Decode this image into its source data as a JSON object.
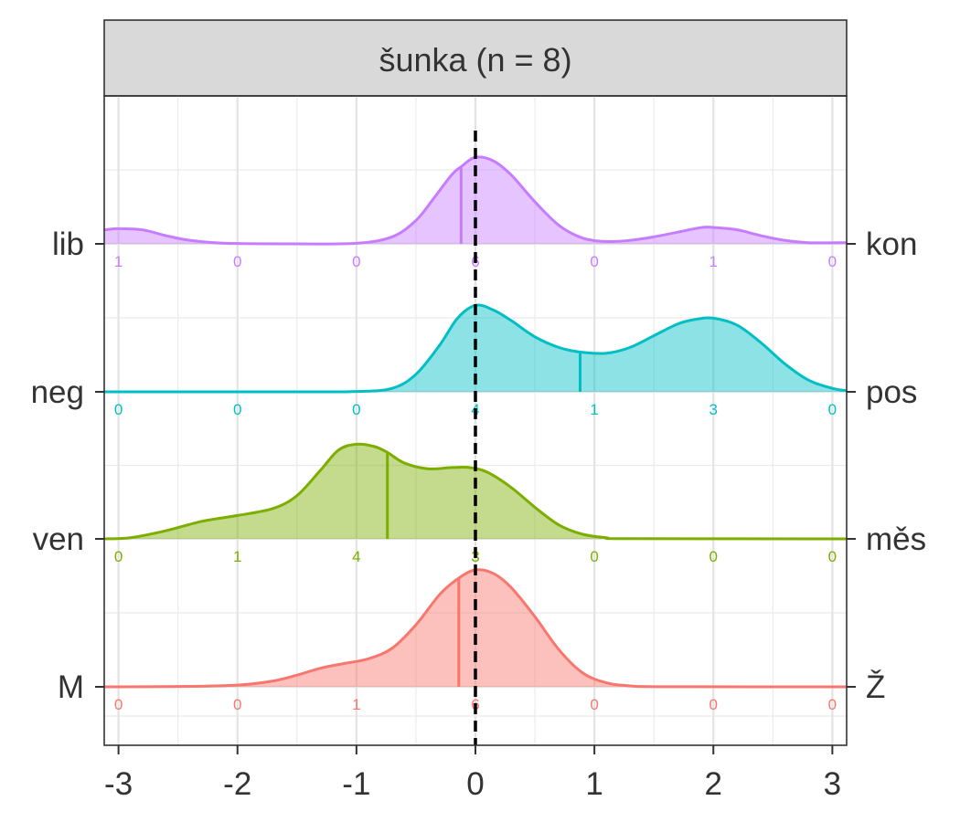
{
  "chart_data": {
    "type": "area",
    "title": "šunka (n = 8)",
    "xlabel": "",
    "ylabel": "",
    "xlim": [
      -3.12,
      3.12
    ],
    "x_ticks": [
      "-3",
      "-2",
      "-1",
      "0",
      "1",
      "2",
      "3"
    ],
    "count_positions": [
      -3,
      -2,
      -1,
      0,
      1,
      2,
      3
    ],
    "reference_line_x": 0,
    "grid": true,
    "legend": "none",
    "series": [
      {
        "left_label": "M",
        "right_label": "Ž",
        "color": "#F8766D",
        "mean": -0.14,
        "counts": [
          "0",
          "0",
          "1",
          "6",
          "0",
          "0",
          "0"
        ],
        "density": [
          [
            -3.12,
            0
          ],
          [
            -2.5,
            0.003
          ],
          [
            -2.0,
            0.015
          ],
          [
            -1.7,
            0.05
          ],
          [
            -1.5,
            0.1
          ],
          [
            -1.3,
            0.16
          ],
          [
            -1.1,
            0.2
          ],
          [
            -0.9,
            0.24
          ],
          [
            -0.7,
            0.33
          ],
          [
            -0.5,
            0.53
          ],
          [
            -0.3,
            0.79
          ],
          [
            -0.14,
            0.93
          ],
          [
            0,
            1.0
          ],
          [
            0.15,
            0.97
          ],
          [
            0.3,
            0.85
          ],
          [
            0.5,
            0.6
          ],
          [
            0.7,
            0.32
          ],
          [
            0.9,
            0.12
          ],
          [
            1.1,
            0.035
          ],
          [
            1.3,
            0.008
          ],
          [
            1.6,
            0.001
          ],
          [
            3.12,
            0
          ]
        ]
      },
      {
        "left_label": "ven",
        "right_label": "měs",
        "color": "#7CAE00",
        "mean": -0.74,
        "counts": [
          "0",
          "1",
          "4",
          "3",
          "0",
          "0",
          "0"
        ],
        "density": [
          [
            -3.12,
            0
          ],
          [
            -2.9,
            0.01
          ],
          [
            -2.6,
            0.07
          ],
          [
            -2.3,
            0.15
          ],
          [
            -2.0,
            0.2
          ],
          [
            -1.7,
            0.26
          ],
          [
            -1.5,
            0.37
          ],
          [
            -1.3,
            0.59
          ],
          [
            -1.15,
            0.76
          ],
          [
            -1.0,
            0.81
          ],
          [
            -0.85,
            0.79
          ],
          [
            -0.74,
            0.74
          ],
          [
            -0.6,
            0.65
          ],
          [
            -0.4,
            0.6
          ],
          [
            -0.2,
            0.61
          ],
          [
            -0.05,
            0.61
          ],
          [
            0.1,
            0.57
          ],
          [
            0.3,
            0.44
          ],
          [
            0.5,
            0.27
          ],
          [
            0.7,
            0.12
          ],
          [
            0.9,
            0.04
          ],
          [
            1.1,
            0.01
          ],
          [
            1.3,
            0.002
          ],
          [
            3.12,
            0
          ]
        ]
      },
      {
        "left_label": "neg",
        "right_label": "pos",
        "color": "#00BFC4",
        "mean": 0.88,
        "counts": [
          "0",
          "0",
          "0",
          "4",
          "1",
          "3",
          "0"
        ],
        "density": [
          [
            -3.12,
            0
          ],
          [
            -1.5,
            0
          ],
          [
            -1.0,
            0.003
          ],
          [
            -0.7,
            0.03
          ],
          [
            -0.5,
            0.15
          ],
          [
            -0.3,
            0.4
          ],
          [
            -0.15,
            0.63
          ],
          [
            0,
            0.74
          ],
          [
            0.15,
            0.7
          ],
          [
            0.3,
            0.61
          ],
          [
            0.5,
            0.47
          ],
          [
            0.7,
            0.38
          ],
          [
            0.88,
            0.34
          ],
          [
            1.1,
            0.33
          ],
          [
            1.3,
            0.38
          ],
          [
            1.5,
            0.48
          ],
          [
            1.7,
            0.58
          ],
          [
            1.85,
            0.62
          ],
          [
            2.0,
            0.63
          ],
          [
            2.2,
            0.57
          ],
          [
            2.4,
            0.42
          ],
          [
            2.6,
            0.24
          ],
          [
            2.8,
            0.1
          ],
          [
            3.0,
            0.03
          ],
          [
            3.12,
            0.01
          ]
        ]
      },
      {
        "left_label": "lib",
        "right_label": "kon",
        "color": "#C77CFF",
        "mean": -0.12,
        "counts": [
          "1",
          "0",
          "0",
          "6",
          "0",
          "1",
          "0"
        ],
        "density": [
          [
            -3.12,
            0.12
          ],
          [
            -3.0,
            0.13
          ],
          [
            -2.8,
            0.12
          ],
          [
            -2.6,
            0.07
          ],
          [
            -2.4,
            0.03
          ],
          [
            -2.1,
            0.005
          ],
          [
            -1.5,
            0
          ],
          [
            -1.0,
            0.005
          ],
          [
            -0.7,
            0.06
          ],
          [
            -0.5,
            0.2
          ],
          [
            -0.35,
            0.39
          ],
          [
            -0.2,
            0.59
          ],
          [
            -0.12,
            0.66
          ],
          [
            0,
            0.74
          ],
          [
            0.15,
            0.71
          ],
          [
            0.3,
            0.59
          ],
          [
            0.5,
            0.36
          ],
          [
            0.7,
            0.16
          ],
          [
            0.9,
            0.05
          ],
          [
            1.1,
            0.02
          ],
          [
            1.3,
            0.03
          ],
          [
            1.5,
            0.06
          ],
          [
            1.7,
            0.1
          ],
          [
            1.9,
            0.14
          ],
          [
            2.0,
            0.14
          ],
          [
            2.2,
            0.12
          ],
          [
            2.4,
            0.07
          ],
          [
            2.6,
            0.03
          ],
          [
            2.8,
            0.01
          ],
          [
            3.12,
            0.01
          ]
        ]
      }
    ]
  }
}
